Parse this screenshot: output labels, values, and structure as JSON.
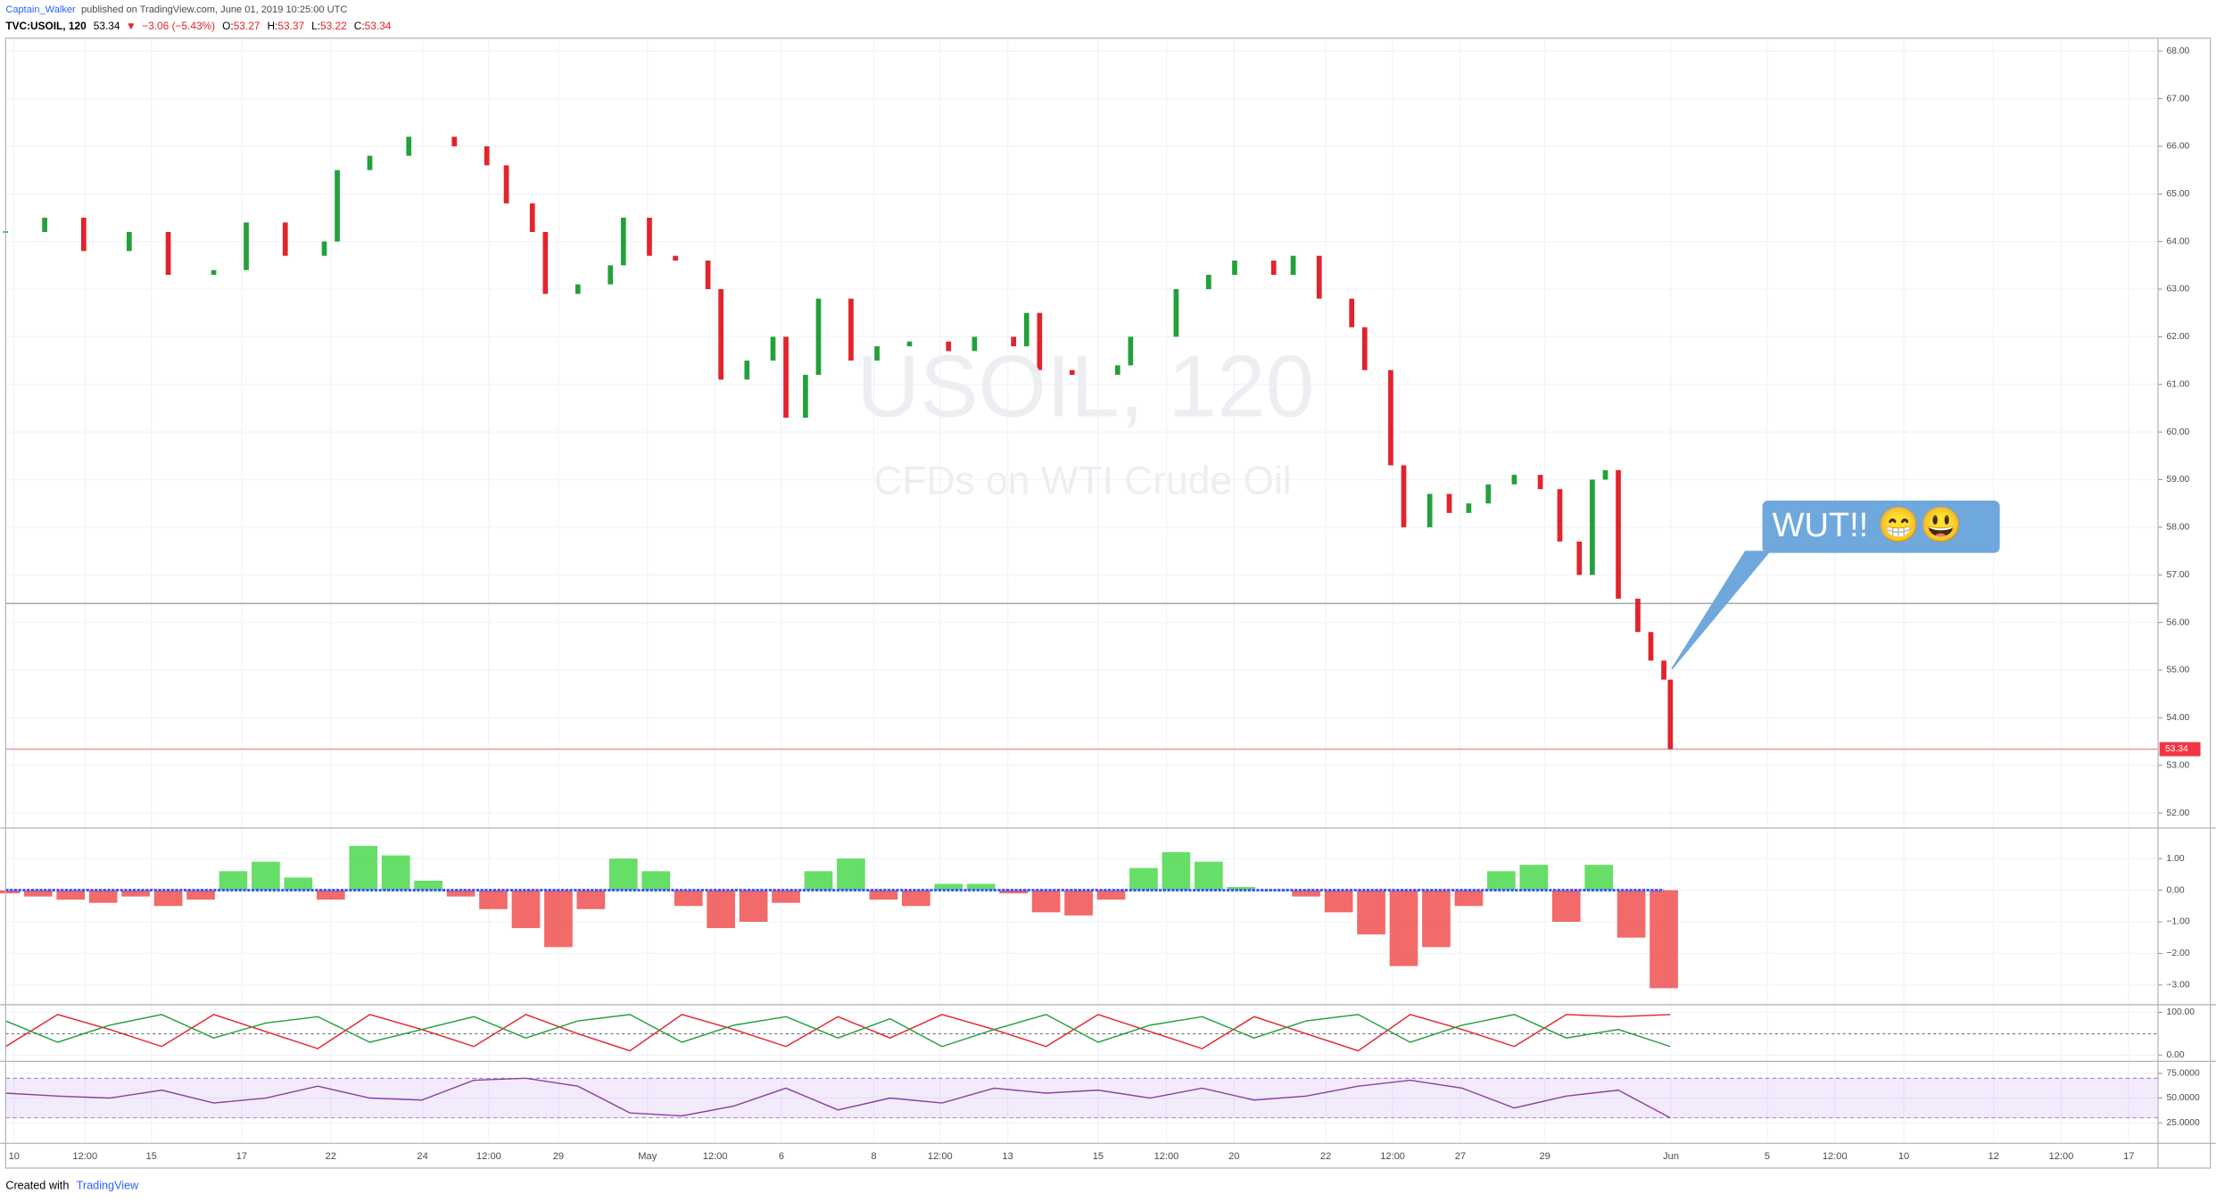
{
  "header": {
    "author": "Captain_Walker",
    "published": "published on TradingView.com, June 01, 2019 10:25:00 UTC",
    "symbol": "TVC:USOIL, 120",
    "last": "53.34",
    "arrow": "▼",
    "change": "−3.06 (−5.43%)",
    "ohlc": [
      {
        "label": "O:",
        "value": "53.27"
      },
      {
        "label": "H:",
        "value": "53.37"
      },
      {
        "label": "L:",
        "value": "53.22"
      },
      {
        "label": "C:",
        "value": "53.34"
      }
    ]
  },
  "watermark": {
    "symbol": "USOIL, 120",
    "description": "CFDs on WTI Crude Oil"
  },
  "annotation": "WUT!! 😁😃",
  "footer": {
    "created": "Created with",
    "brand": "TradingView"
  },
  "chart_data": [
    {
      "type": "candlestick",
      "up_color": "#22a13a",
      "down_color": "#e3232b",
      "grid": true,
      "hline": 56.4,
      "last_color": "#f23645",
      "xlim": [
        0,
        331
      ],
      "ylim": [
        51.7,
        68.27
      ],
      "yticks": [
        {
          "value": 52,
          "label": "52.00"
        },
        {
          "value": 53,
          "label": "53.00"
        },
        {
          "value": 54,
          "label": "54.00"
        },
        {
          "value": 55,
          "label": "55.00"
        },
        {
          "value": 56,
          "label": "56.00"
        },
        {
          "value": 57,
          "label": "57.00"
        },
        {
          "value": 58,
          "label": "58.00"
        },
        {
          "value": 59,
          "label": "59.00"
        },
        {
          "value": 60,
          "label": "60.00"
        },
        {
          "value": 61,
          "label": "61.00"
        },
        {
          "value": 62,
          "label": "62.00"
        },
        {
          "value": 63,
          "label": "63.00"
        },
        {
          "value": 64,
          "label": "64.00"
        },
        {
          "value": 65,
          "label": "65.00"
        },
        {
          "value": 66,
          "label": "66.00"
        },
        {
          "value": 67,
          "label": "67.00"
        },
        {
          "value": 68,
          "label": "68.00"
        }
      ],
      "x": [
        0,
        6,
        12,
        19,
        25,
        32,
        37,
        43,
        49,
        51,
        56,
        62,
        69,
        74,
        77,
        81,
        83,
        88,
        93,
        95,
        99,
        103,
        108,
        110,
        114,
        118,
        120,
        123,
        125,
        130,
        134,
        139,
        145,
        149,
        155,
        157,
        159,
        164,
        171,
        173,
        180,
        185,
        189,
        195,
        198,
        202,
        207,
        209,
        213,
        215,
        219,
        222,
        225,
        228,
        232,
        236,
        239,
        242,
        244,
        246,
        248,
        251,
        253,
        255,
        256
      ],
      "values": [
        64.2,
        64.5,
        63.8,
        64.2,
        63.3,
        63.4,
        64.4,
        63.7,
        64.0,
        65.5,
        65.8,
        66.2,
        66.0,
        65.6,
        64.8,
        64.2,
        62.9,
        63.1,
        63.5,
        64.5,
        63.7,
        63.6,
        63.0,
        61.1,
        61.5,
        62.0,
        60.3,
        61.2,
        62.8,
        61.5,
        61.8,
        61.9,
        61.7,
        62.0,
        61.8,
        62.5,
        61.3,
        61.2,
        61.4,
        62.0,
        63.0,
        63.3,
        63.6,
        63.3,
        63.7,
        62.8,
        62.2,
        61.3,
        59.3,
        58.0,
        58.7,
        58.3,
        58.5,
        58.9,
        59.1,
        58.8,
        57.7,
        57.0,
        59.0,
        59.2,
        56.5,
        55.8,
        55.2,
        54.8,
        53.34
      ]
    },
    {
      "type": "bar",
      "up_color": "#4cd84c",
      "down_color": "#f05050",
      "zero_color": "#3d5afe",
      "xlim": [
        0,
        331
      ],
      "ylim": [
        -3.6,
        1.9
      ],
      "yticks": [
        {
          "value": 1,
          "label": "1.00"
        },
        {
          "value": 0,
          "label": "0.00"
        },
        {
          "value": -1,
          "label": "−1.00"
        },
        {
          "value": -2,
          "label": "−2.00"
        },
        {
          "value": -3,
          "label": "−3.00"
        }
      ],
      "x": [
        0,
        5,
        10,
        15,
        20,
        25,
        30,
        35,
        40,
        45,
        50,
        55,
        60,
        65,
        70,
        75,
        80,
        85,
        90,
        95,
        100,
        105,
        110,
        115,
        120,
        125,
        130,
        135,
        140,
        145,
        150,
        155,
        160,
        165,
        170,
        175,
        180,
        185,
        190,
        195,
        200,
        205,
        210,
        215,
        220,
        225,
        230,
        235,
        240,
        245,
        250,
        255
      ],
      "values": [
        -0.1,
        -0.2,
        -0.3,
        -0.4,
        -0.2,
        -0.5,
        -0.3,
        0.6,
        0.9,
        0.4,
        -0.3,
        1.4,
        1.1,
        0.3,
        -0.2,
        -0.6,
        -1.2,
        -1.8,
        -0.6,
        1.0,
        0.6,
        -0.5,
        -1.2,
        -1.0,
        -0.4,
        0.6,
        1.0,
        -0.3,
        -0.5,
        0.2,
        0.2,
        -0.1,
        -0.7,
        -0.8,
        -0.3,
        0.7,
        1.2,
        0.9,
        0.1,
        0.0,
        -0.2,
        -0.7,
        -1.4,
        -2.4,
        -1.8,
        -0.5,
        0.6,
        0.8,
        -1.0,
        0.8,
        -1.5,
        -3.1
      ]
    },
    {
      "type": "line",
      "xlim": [
        0,
        331
      ],
      "ylim": [
        -13,
        113
      ],
      "level": 50,
      "yticks": [
        {
          "value": 100,
          "label": "100.00"
        },
        {
          "value": 0,
          "label": "0.00"
        }
      ],
      "x": [
        0,
        8,
        16,
        24,
        32,
        40,
        48,
        56,
        64,
        72,
        80,
        88,
        96,
        104,
        112,
        120,
        128,
        136,
        144,
        152,
        160,
        168,
        176,
        184,
        192,
        200,
        208,
        216,
        224,
        232,
        240,
        248,
        256
      ],
      "series": [
        {
          "color": "#e3232b",
          "values": [
            20,
            95,
            60,
            20,
            95,
            55,
            15,
            95,
            60,
            20,
            95,
            50,
            10,
            95,
            60,
            20,
            90,
            40,
            95,
            60,
            20,
            95,
            55,
            15,
            90,
            50,
            10,
            95,
            60,
            20,
            95,
            90,
            95
          ]
        },
        {
          "color": "#22a13a",
          "values": [
            80,
            30,
            70,
            95,
            40,
            75,
            90,
            30,
            60,
            90,
            40,
            80,
            95,
            30,
            70,
            90,
            40,
            85,
            20,
            60,
            95,
            30,
            70,
            90,
            40,
            80,
            95,
            30,
            70,
            95,
            40,
            60,
            20
          ]
        }
      ]
    },
    {
      "type": "line",
      "xlim": [
        0,
        331
      ],
      "ylim": [
        5,
        85
      ],
      "band": [
        30,
        70
      ],
      "yticks": [
        {
          "value": 75,
          "label": "75.0000"
        },
        {
          "value": 50,
          "label": "50.0000"
        },
        {
          "value": 25,
          "label": "25.0000"
        }
      ],
      "xticks": [
        {
          "value": 1.3,
          "label": "10"
        },
        {
          "value": 12.2,
          "label": "12:00"
        },
        {
          "value": 22.4,
          "label": "15"
        },
        {
          "value": 36.3,
          "label": "17"
        },
        {
          "value": 50,
          "label": "22"
        },
        {
          "value": 64.1,
          "label": "24"
        },
        {
          "value": 74.3,
          "label": "12:00"
        },
        {
          "value": 85,
          "label": "29"
        },
        {
          "value": 98.7,
          "label": "May"
        },
        {
          "value": 109.1,
          "label": "12:00"
        },
        {
          "value": 119.3,
          "label": "6"
        },
        {
          "value": 133.5,
          "label": "8"
        },
        {
          "value": 143.7,
          "label": "12:00"
        },
        {
          "value": 154.1,
          "label": "13"
        },
        {
          "value": 168,
          "label": "15"
        },
        {
          "value": 178.5,
          "label": "12:00"
        },
        {
          "value": 188.9,
          "label": "20"
        },
        {
          "value": 203,
          "label": "22"
        },
        {
          "value": 213.3,
          "label": "12:00"
        },
        {
          "value": 223.7,
          "label": "27"
        },
        {
          "value": 236.7,
          "label": "29"
        },
        {
          "value": 256.1,
          "label": "Jun"
        },
        {
          "value": 270.9,
          "label": "5"
        },
        {
          "value": 281.3,
          "label": "12:00"
        },
        {
          "value": 291.9,
          "label": "10"
        },
        {
          "value": 305.7,
          "label": "12"
        },
        {
          "value": 316.1,
          "label": "12:00"
        },
        {
          "value": 326.5,
          "label": "17"
        }
      ],
      "x": [
        0,
        8,
        16,
        24,
        32,
        40,
        48,
        56,
        64,
        72,
        80,
        88,
        96,
        104,
        112,
        120,
        128,
        136,
        144,
        152,
        160,
        168,
        176,
        184,
        192,
        200,
        208,
        216,
        224,
        232,
        240,
        248,
        256
      ],
      "series": [
        {
          "color": "#8e3fa0",
          "values": [
            55,
            52,
            50,
            58,
            45,
            50,
            62,
            50,
            48,
            68,
            70,
            62,
            35,
            32,
            42,
            60,
            38,
            50,
            45,
            60,
            55,
            58,
            50,
            60,
            48,
            52,
            62,
            68,
            60,
            40,
            52,
            58,
            30
          ]
        }
      ]
    }
  ]
}
